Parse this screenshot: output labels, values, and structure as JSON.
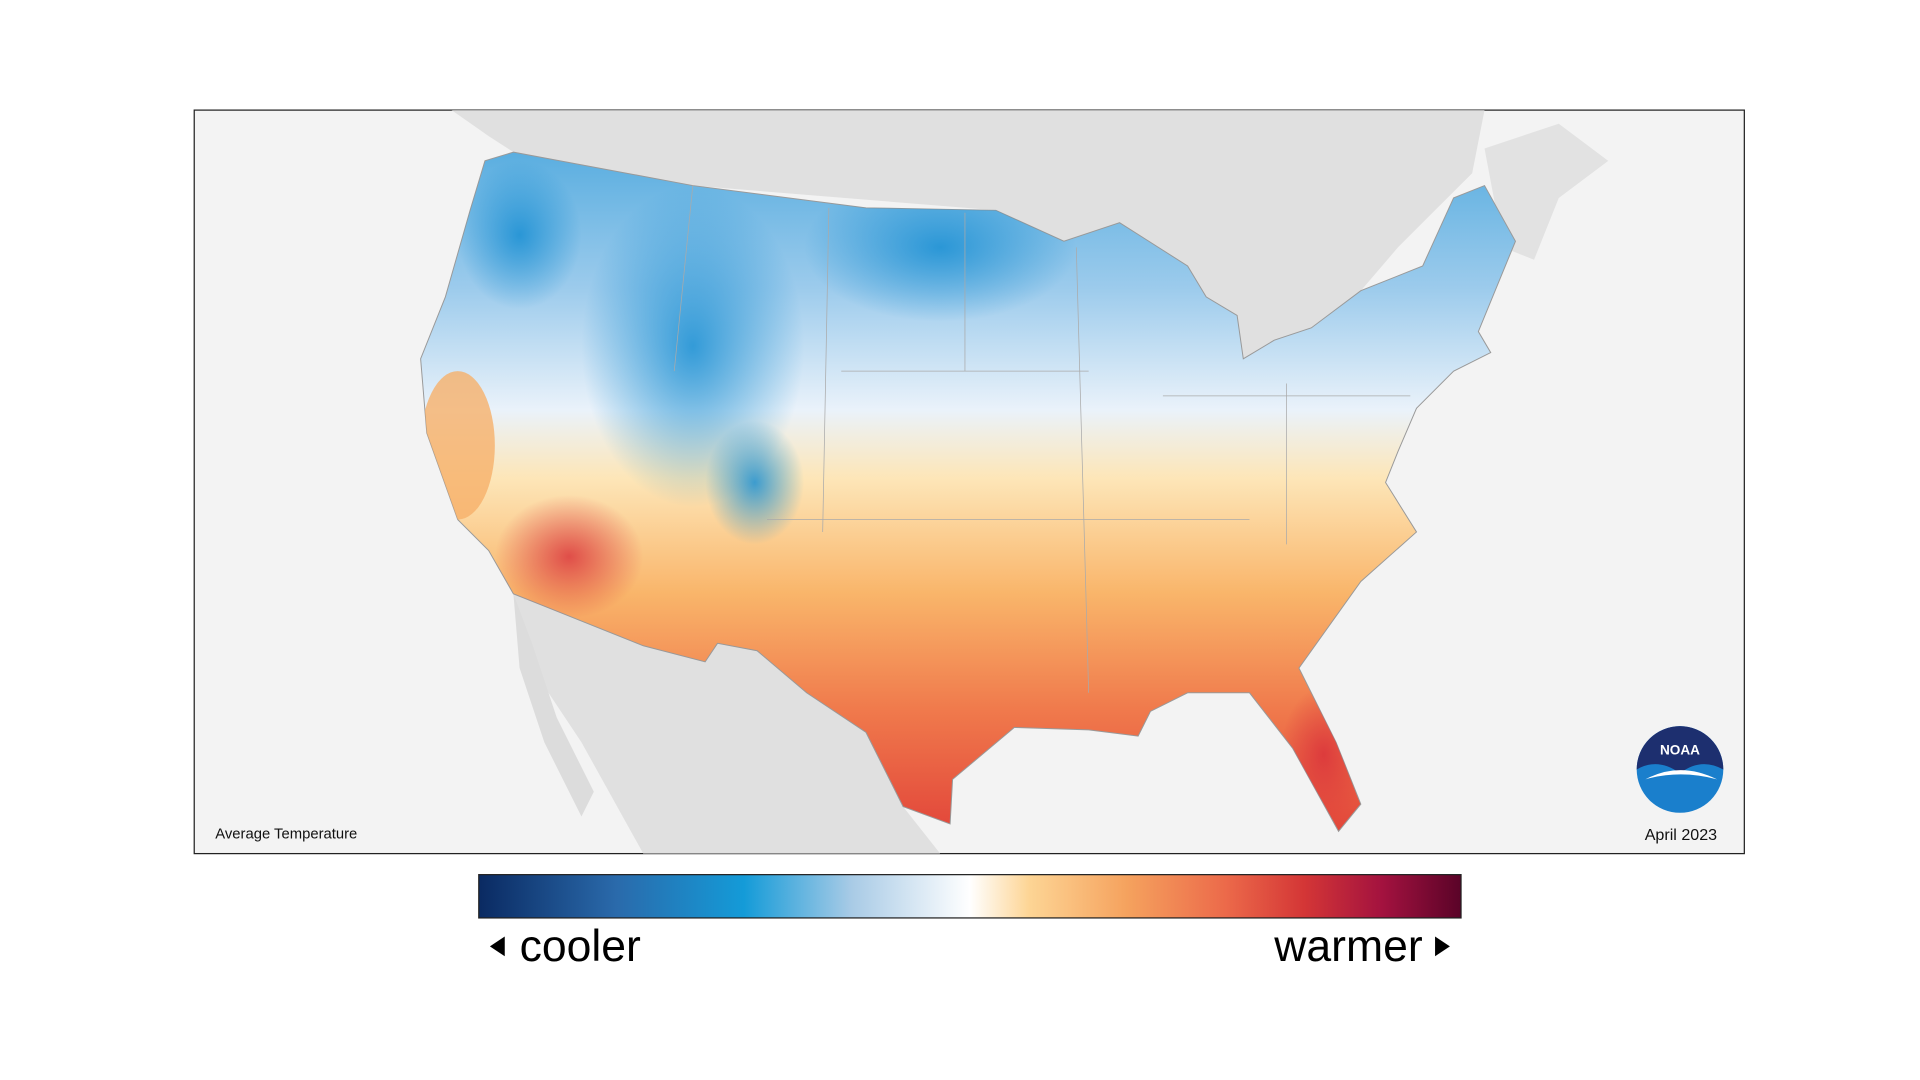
{
  "map": {
    "caption": "Average Temperature",
    "date": "April 2023"
  },
  "logo": {
    "text": "NOAA"
  },
  "legend": {
    "low_label": "cooler",
    "high_label": "warmer"
  }
}
